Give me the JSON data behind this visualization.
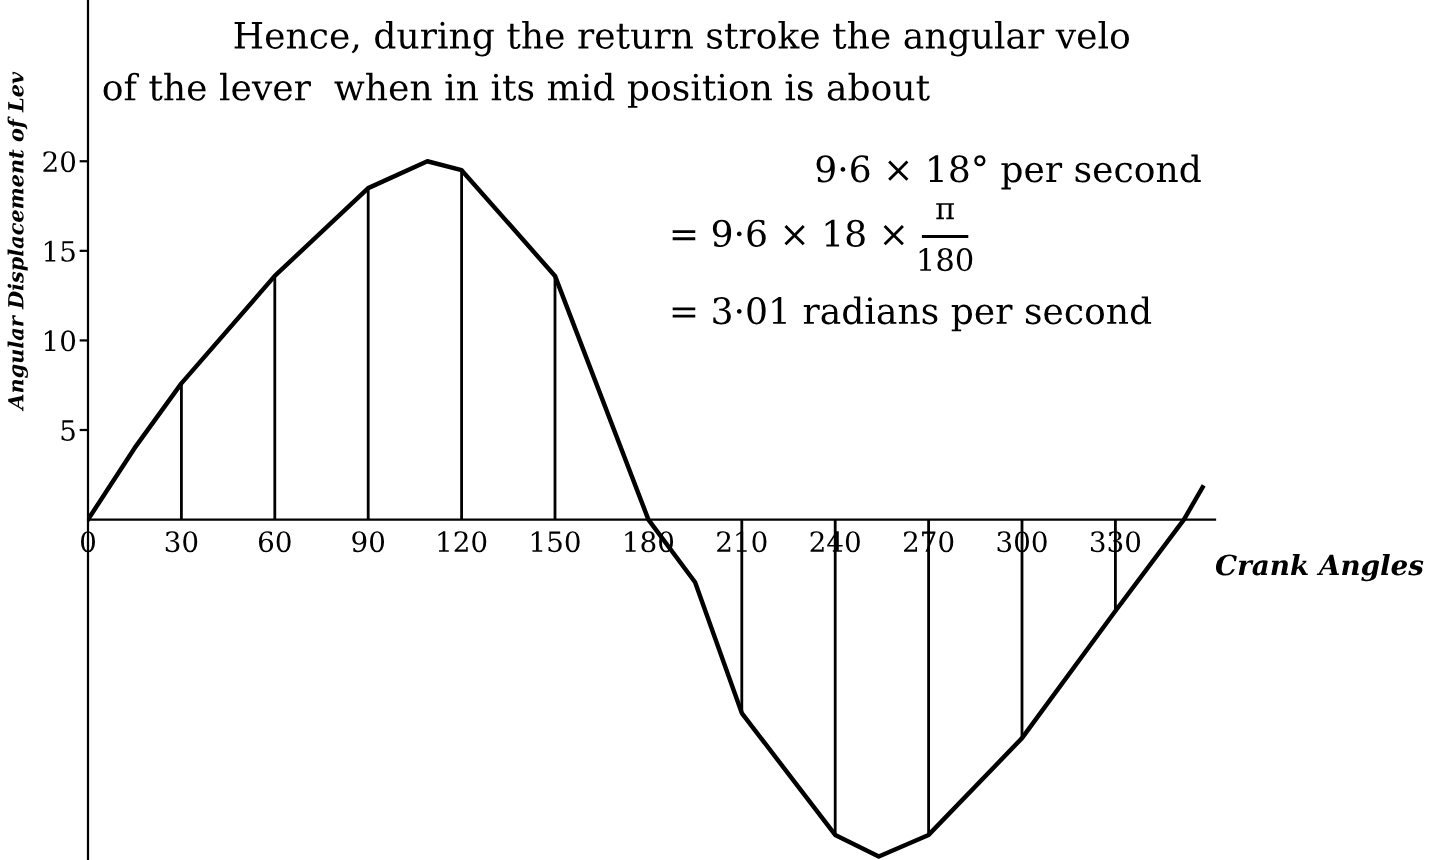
{
  "chart_data": {
    "type": "line",
    "xlabel": "Crank Angles",
    "ylabel": "Angular Displacement of Lev",
    "xlim": [
      0,
      362
    ],
    "ylim": [
      -19,
      29
    ],
    "xticks": [
      0,
      30,
      60,
      90,
      120,
      150,
      180,
      210,
      240,
      270,
      300,
      330
    ],
    "yticks": [
      5,
      10,
      15,
      20
    ],
    "grid": false,
    "legend": false,
    "marker": "none",
    "line_style": "solid",
    "series": [
      {
        "color": "#000000",
        "x": [
          0,
          15,
          30,
          60,
          90,
          109,
          120,
          150,
          180,
          195,
          210,
          240,
          254,
          270,
          300,
          330,
          352,
          358
        ],
        "values": [
          0,
          4.0,
          7.6,
          13.6,
          18.5,
          20.0,
          19.5,
          13.6,
          0,
          -3.5,
          -10.8,
          -17.6,
          -18.8,
          -17.6,
          -12.2,
          -5.1,
          0,
          1.8
        ]
      },
      {
        "type": "bar",
        "color": "#000000",
        "x": [
          30,
          60,
          90,
          120,
          150,
          210,
          240,
          270,
          300,
          330
        ],
        "values": [
          7.6,
          13.6,
          18.5,
          19.5,
          13.6,
          -10.8,
          -17.6,
          -17.6,
          -12.2,
          -5.1
        ]
      }
    ],
    "annotations": [
      "Hence, during the return stroke the angular velo",
      "of the lever  when in its mid position is about",
      "9·6 × 18° per second",
      "= 9·6 × 18 ×",
      "π",
      "180",
      "= 3·01 radians per second"
    ]
  }
}
